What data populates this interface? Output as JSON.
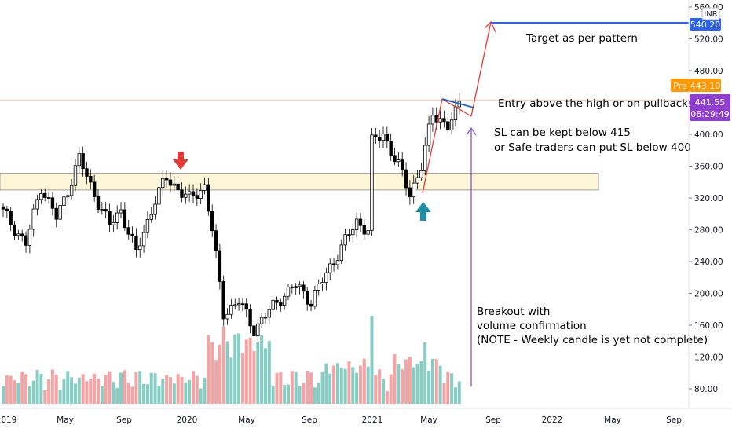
{
  "currency_label": "INR",
  "colors": {
    "up": "#26a69a",
    "down": "#ef5350",
    "up_vol": "#86cdc4",
    "down_vol": "#f5a3a3",
    "zone_fill": "#fdf6d8",
    "zone_stroke": "#8a8a8a",
    "target_line": "#2962ff",
    "arrow_line": "#e53935",
    "pullback_line": "#1e63d6",
    "purple_line": "#7e57c2",
    "entry_line": "#f6c8b0",
    "badge_pre": "#ff9800",
    "badge_last": "#8e3fcf"
  },
  "badges": {
    "target": "540.20",
    "pre_label": "Pre",
    "pre_value": "443.10",
    "last_value": "441.55",
    "last_time": "06:29:49"
  },
  "annotations": {
    "target": "Target as per pattern",
    "entry": "Entry above the high or on pullbacks",
    "sl_line1": "SL can be kept below 415",
    "sl_line2": "or Safe traders can put SL below 400",
    "breakout1": "Breakout with",
    "breakout2": "volume confirmation",
    "breakout3": "(NOTE - Weekly candle is yet not complete)"
  },
  "chart_data": {
    "type": "candlestick",
    "interval": "weekly",
    "y_axis": {
      "ticks": [
        "560.00",
        "520.00",
        "480.00",
        "440.00",
        "400.00",
        "360.00",
        "320.00",
        "280.00",
        "240.00",
        "200.00",
        "160.00",
        "120.00",
        "80.00"
      ],
      "range": [
        70,
        570
      ],
      "side": "right"
    },
    "x_axis": {
      "ticks": [
        "2019",
        "May",
        "Sep",
        "2020",
        "May",
        "Sep",
        "2021",
        "May",
        "Sep",
        "2022",
        "May",
        "Sep"
      ]
    },
    "price_anchors": [
      {
        "week": 0,
        "close": 302
      },
      {
        "week": 6,
        "close": 262
      },
      {
        "week": 10,
        "close": 335
      },
      {
        "week": 14,
        "close": 295
      },
      {
        "week": 16,
        "close": 317
      },
      {
        "week": 20,
        "close": 370
      },
      {
        "week": 23,
        "close": 335
      },
      {
        "week": 28,
        "close": 285
      },
      {
        "week": 31,
        "close": 305
      },
      {
        "week": 35,
        "close": 250
      },
      {
        "week": 40,
        "close": 318
      },
      {
        "week": 43,
        "close": 345
      },
      {
        "week": 49,
        "close": 318
      },
      {
        "week": 53,
        "close": 335
      },
      {
        "week": 55,
        "close": 280
      },
      {
        "week": 58,
        "close": 175
      },
      {
        "week": 62,
        "close": 190
      },
      {
        "week": 66,
        "close": 155
      },
      {
        "week": 73,
        "close": 195
      },
      {
        "week": 77,
        "close": 210
      },
      {
        "week": 81,
        "close": 190
      },
      {
        "week": 88,
        "close": 250
      },
      {
        "week": 93,
        "close": 290
      },
      {
        "week": 96,
        "close": 280
      },
      {
        "week": 97,
        "close": 390
      },
      {
        "week": 100,
        "close": 400
      },
      {
        "week": 104,
        "close": 360
      },
      {
        "week": 107,
        "close": 325
      },
      {
        "week": 110,
        "close": 360
      },
      {
        "week": 113,
        "close": 425
      },
      {
        "week": 115,
        "close": 420
      },
      {
        "week": 117,
        "close": 410
      },
      {
        "week": 119,
        "close": 425
      },
      {
        "week": 120,
        "close": 441.55
      }
    ],
    "volume_peaks": [
      {
        "week": 55,
        "level": "high"
      },
      {
        "week": 67,
        "level": "high"
      },
      {
        "week": 97,
        "level": "highest"
      },
      {
        "week": 111,
        "level": "high"
      }
    ],
    "levels": {
      "resistance_zone": [
        330,
        351
      ],
      "entry_level": 443.1,
      "target": 540.2,
      "stop_loss_1": 415,
      "stop_loss_2": 400
    },
    "markers": [
      {
        "type": "down-arrow",
        "week": 44,
        "color": "red"
      },
      {
        "type": "up-arrow",
        "week": 107,
        "color": "teal"
      }
    ],
    "grid": false
  }
}
